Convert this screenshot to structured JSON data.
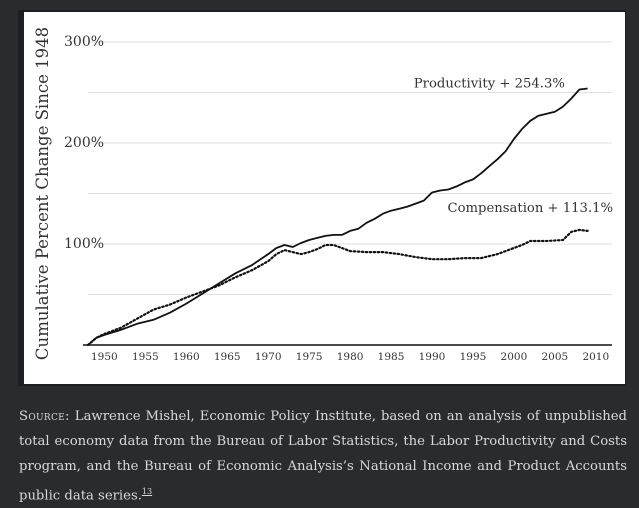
{
  "chart_data": {
    "type": "line",
    "ylabel": "Cumulative Percent Change Since 1948",
    "xlabel": "",
    "xlim": [
      1948,
      2011
    ],
    "ylim": [
      0,
      300
    ],
    "x_ticks": [
      1950,
      1955,
      1960,
      1965,
      1970,
      1975,
      1980,
      1985,
      1990,
      1995,
      2000,
      2005,
      2010
    ],
    "y_ticks": [
      100,
      200,
      300
    ],
    "y_tick_labels": [
      "100%",
      "200%",
      "300%"
    ],
    "grid": true,
    "series": [
      {
        "name": "Productivity + 254.3%",
        "style": "solid",
        "color": "#111111",
        "x": [
          1948,
          1949,
          1950,
          1952,
          1954,
          1956,
          1958,
          1960,
          1962,
          1964,
          1966,
          1968,
          1970,
          1971,
          1972,
          1973,
          1974,
          1975,
          1976,
          1977,
          1978,
          1979,
          1980,
          1981,
          1982,
          1983,
          1984,
          1985,
          1986,
          1987,
          1988,
          1989,
          1990,
          1991,
          1992,
          1993,
          1994,
          1995,
          1996,
          1997,
          1998,
          1999,
          2000,
          2001,
          2002,
          2003,
          2004,
          2005,
          2006,
          2007,
          2008,
          2009
        ],
        "y": [
          0,
          7,
          10,
          15,
          21,
          25,
          32,
          41,
          51,
          61,
          71,
          79,
          90,
          96,
          99,
          97,
          101,
          104,
          106,
          108,
          109,
          109,
          113,
          115,
          121,
          125,
          130,
          133,
          135,
          137,
          140,
          143,
          151,
          153,
          154,
          157,
          161,
          164,
          170,
          177,
          184,
          192,
          204,
          214,
          222,
          227,
          229,
          231,
          236,
          244,
          253,
          254
        ]
      },
      {
        "name": "Compensation + 113.1%",
        "style": "dotted",
        "color": "#111111",
        "x": [
          1948,
          1949,
          1950,
          1952,
          1954,
          1956,
          1958,
          1960,
          1962,
          1964,
          1966,
          1968,
          1970,
          1971,
          1972,
          1973,
          1974,
          1975,
          1976,
          1977,
          1978,
          1979,
          1980,
          1982,
          1984,
          1986,
          1988,
          1990,
          1992,
          1994,
          1996,
          1998,
          2000,
          2001,
          2002,
          2004,
          2006,
          2007,
          2008,
          2009
        ],
        "y": [
          0,
          7,
          11,
          17,
          26,
          35,
          40,
          47,
          53,
          59,
          67,
          74,
          83,
          90,
          94,
          92,
          90,
          92,
          95,
          99,
          99,
          96,
          93,
          92,
          92,
          90,
          87,
          85,
          85,
          86,
          86,
          90,
          96,
          99,
          103,
          103,
          104,
          112,
          114,
          113
        ]
      }
    ],
    "annotations": [
      {
        "text": "Productivity + 254.3%",
        "x": 1997,
        "y": 254
      },
      {
        "text": "Compensation + 113.1%",
        "x": 2002,
        "y": 113
      }
    ]
  },
  "caption": {
    "source_label": "Source:",
    "text": " Lawrence Mishel, Economic Policy Institute, based on an analysis of unpublished total economy data from the Bureau of Labor Statistics, the Labor Productivity and Costs program, and the Bureau of Economic Analysis’s National Income and Product Accounts public data series.",
    "footnote": "13"
  }
}
